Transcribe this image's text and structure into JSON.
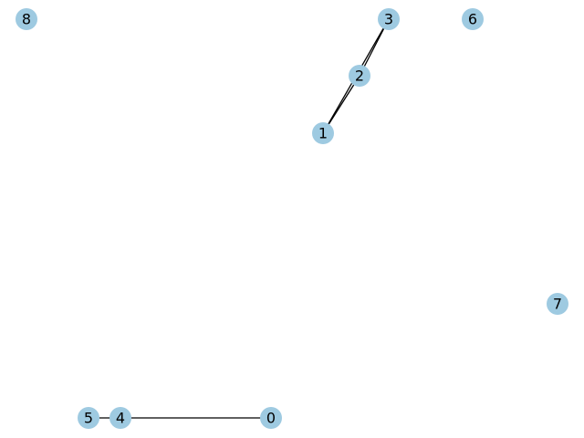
{
  "graph": {
    "node_color": "#9ecae1",
    "edge_color": "#000000",
    "nodes": [
      {
        "id": "0",
        "label": "0"
      },
      {
        "id": "1",
        "label": "1"
      },
      {
        "id": "2",
        "label": "2"
      },
      {
        "id": "3",
        "label": "3"
      },
      {
        "id": "4",
        "label": "4"
      },
      {
        "id": "5",
        "label": "5"
      },
      {
        "id": "6",
        "label": "6"
      },
      {
        "id": "7",
        "label": "7"
      },
      {
        "id": "8",
        "label": "8"
      }
    ],
    "edges": [
      {
        "source": "1",
        "target": "2"
      },
      {
        "source": "1",
        "target": "3"
      },
      {
        "source": "2",
        "target": "3"
      },
      {
        "source": "4",
        "target": "0"
      },
      {
        "source": "5",
        "target": "4"
      }
    ]
  }
}
